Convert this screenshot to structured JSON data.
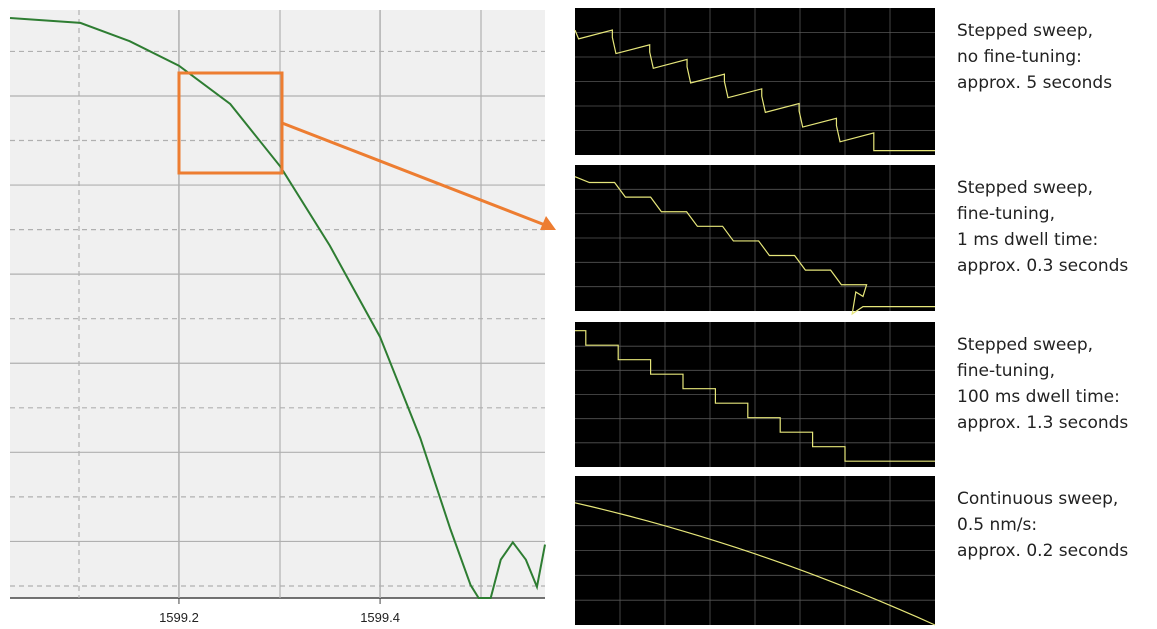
{
  "chart_data": {
    "type": "line",
    "x": [
      1599.032,
      1599.102,
      1599.151,
      1599.2,
      1599.251,
      1599.301,
      1599.35,
      1599.4,
      1599.44,
      1599.47,
      1599.49,
      1599.498,
      1599.51,
      1599.52,
      1599.532,
      1599.545,
      1599.556,
      1599.564
    ],
    "series": [
      {
        "color": "#2e7d32",
        "values": [
          12.75,
          12.64,
          12.23,
          11.68,
          10.82,
          9.41,
          7.64,
          5.59,
          3.32,
          1.27,
          0.02,
          -0.27,
          -0.27,
          0.59,
          0.98,
          0.59,
          -0.02,
          0.93
        ]
      }
    ],
    "xlim": [
      1599.032,
      1599.564
    ],
    "xticks": [
      {
        "value": 1599.2,
        "label": "1599.2"
      },
      {
        "value": 1599.4,
        "label": "1599.4"
      }
    ],
    "ylim": [
      -0.27,
      12.93
    ],
    "yticks": [
      0,
      1,
      2,
      3,
      4,
      5,
      6,
      7,
      8,
      9,
      10,
      11,
      12
    ],
    "grid": true
  },
  "panels": [
    {
      "caption": [
        "Stepped sweep,",
        "no fine-tuning:",
        "approx. 5 seconds"
      ]
    },
    {
      "caption": [
        "Stepped sweep,",
        "fine-tuning,",
        "1 ms dwell time:",
        "approx. 0.3 seconds"
      ]
    },
    {
      "caption": [
        "Stepped sweep,",
        "fine-tuning,",
        "100 ms dwell time:",
        "approx. 1.3 seconds"
      ]
    },
    {
      "caption": [
        "Continuous sweep,",
        "0.5 nm/s:",
        "approx. 0.2 seconds"
      ]
    }
  ]
}
